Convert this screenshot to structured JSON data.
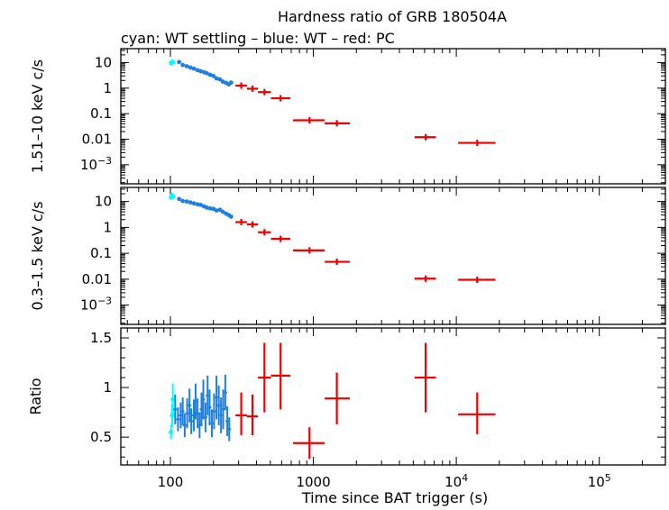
{
  "chart_data": {
    "type": "scatter",
    "title": "Hardness ratio of GRB 180504A",
    "subtitle": "cyan: WT settling – blue: WT – red: PC",
    "xlabel": "Time since BAT trigger (s)",
    "xscale": "log",
    "xlim": [
      45,
      290000.0
    ],
    "xticks": [
      {
        "value": 100,
        "base": "100",
        "exp": ""
      },
      {
        "value": 1000,
        "base": "1000",
        "exp": ""
      },
      {
        "value": 10000,
        "base": "10",
        "exp": "4"
      },
      {
        "value": 100000,
        "base": "10",
        "exp": "5"
      }
    ],
    "colors": {
      "settling": "#00ffff",
      "wt": "#1e7fe0",
      "pc": "#ee0000"
    },
    "panels": [
      {
        "id": "hard",
        "ylabel": "1.51–10 keV c/s",
        "yscale": "log",
        "ylim": [
          0.00018,
          35
        ],
        "yticks": [
          {
            "value": 10,
            "base": "10",
            "exp": ""
          },
          {
            "value": 1,
            "base": "1",
            "exp": ""
          },
          {
            "value": 0.1,
            "base": "0.1",
            "exp": ""
          },
          {
            "value": 0.01,
            "base": "0.01",
            "exp": ""
          },
          {
            "value": 0.001,
            "base": "10",
            "exp": "−3"
          }
        ],
        "settling": [
          [
            101,
            9.6
          ],
          [
            103,
            10.8
          ],
          [
            104,
            10.2
          ]
        ],
        "wt": [
          [
            115,
            10.5
          ],
          [
            122,
            8.0
          ],
          [
            130,
            7.2
          ],
          [
            138,
            6.4
          ],
          [
            146,
            5.8
          ],
          [
            155,
            5.0
          ],
          [
            163,
            4.6
          ],
          [
            172,
            4.2
          ],
          [
            180,
            3.8
          ],
          [
            190,
            3.3
          ],
          [
            200,
            3.0
          ],
          [
            210,
            2.4
          ],
          [
            222,
            2.2
          ],
          [
            233,
            1.8
          ],
          [
            245,
            1.6
          ],
          [
            256,
            1.4
          ],
          [
            266,
            1.65
          ]
        ],
        "pc": [
          {
            "x": 313,
            "xlo": 285,
            "xhi": 343,
            "y": 1.25
          },
          {
            "x": 375,
            "xlo": 343,
            "xhi": 410,
            "y": 0.95
          },
          {
            "x": 455,
            "xlo": 410,
            "xhi": 505,
            "y": 0.7
          },
          {
            "x": 590,
            "xlo": 505,
            "xhi": 690,
            "y": 0.4
          },
          {
            "x": 940,
            "xlo": 720,
            "xhi": 1200,
            "y": 0.055
          },
          {
            "x": 1460,
            "xlo": 1200,
            "xhi": 1800,
            "y": 0.042
          },
          {
            "x": 6100,
            "xlo": 5100,
            "xhi": 7200,
            "y": 0.012
          },
          {
            "x": 14000,
            "xlo": 10300,
            "xhi": 18800,
            "y": 0.0072
          }
        ]
      },
      {
        "id": "soft",
        "ylabel": "0.3–1.5 keV c/s",
        "yscale": "log",
        "ylim": [
          0.00018,
          35
        ],
        "yticks": [
          {
            "value": 10,
            "base": "10",
            "exp": ""
          },
          {
            "value": 1,
            "base": "1",
            "exp": ""
          },
          {
            "value": 0.1,
            "base": "0.1",
            "exp": ""
          },
          {
            "value": 0.01,
            "base": "0.01",
            "exp": ""
          },
          {
            "value": 0.001,
            "base": "10",
            "exp": "−3"
          }
        ],
        "settling": [
          [
            101,
            14.5
          ],
          [
            103,
            17.5
          ],
          [
            104,
            15.5
          ]
        ],
        "wt": [
          [
            115,
            12.5
          ],
          [
            122,
            10.5
          ],
          [
            130,
            10.0
          ],
          [
            138,
            9.2
          ],
          [
            146,
            8.5
          ],
          [
            155,
            7.8
          ],
          [
            163,
            7.4
          ],
          [
            172,
            6.5
          ],
          [
            180,
            5.8
          ],
          [
            190,
            5.4
          ],
          [
            200,
            5.2
          ],
          [
            210,
            4.5
          ],
          [
            222,
            4.8
          ],
          [
            233,
            4.0
          ],
          [
            245,
            3.4
          ],
          [
            256,
            3.0
          ],
          [
            266,
            2.6
          ]
        ],
        "pc": [
          {
            "x": 313,
            "xlo": 285,
            "xhi": 343,
            "y": 1.6
          },
          {
            "x": 375,
            "xlo": 343,
            "xhi": 410,
            "y": 1.3
          },
          {
            "x": 455,
            "xlo": 410,
            "xhi": 505,
            "y": 0.65
          },
          {
            "x": 590,
            "xlo": 505,
            "xhi": 690,
            "y": 0.36
          },
          {
            "x": 940,
            "xlo": 720,
            "xhi": 1200,
            "y": 0.13
          },
          {
            "x": 1460,
            "xlo": 1200,
            "xhi": 1800,
            "y": 0.047
          },
          {
            "x": 6100,
            "xlo": 5100,
            "xhi": 7200,
            "y": 0.0105
          },
          {
            "x": 14000,
            "xlo": 10300,
            "xhi": 18800,
            "y": 0.0095
          }
        ]
      },
      {
        "id": "ratio",
        "ylabel": "Ratio",
        "yscale": "linear",
        "ylim": [
          0.22,
          1.6
        ],
        "yticks": [
          {
            "value": 1.5,
            "base": "1.5",
            "exp": ""
          },
          {
            "value": 1,
            "base": "1",
            "exp": ""
          },
          {
            "value": 0.5,
            "base": "0.5",
            "exp": ""
          }
        ],
        "settling": [
          [
            101,
            0.55,
            0.07
          ],
          [
            103,
            0.72,
            0.12
          ],
          [
            104,
            0.88,
            0.16
          ]
        ],
        "wt": [
          [
            108,
            0.78,
            0.15
          ],
          [
            113,
            0.68,
            0.12
          ],
          [
            118,
            0.72,
            0.13
          ],
          [
            122,
            0.76,
            0.14
          ],
          [
            126,
            0.62,
            0.12
          ],
          [
            131,
            0.74,
            0.15
          ],
          [
            136,
            0.82,
            0.17
          ],
          [
            140,
            0.66,
            0.13
          ],
          [
            146,
            0.72,
            0.16
          ],
          [
            150,
            0.86,
            0.18
          ],
          [
            155,
            0.74,
            0.15
          ],
          [
            160,
            0.62,
            0.13
          ],
          [
            165,
            0.78,
            0.17
          ],
          [
            170,
            0.88,
            0.2
          ],
          [
            176,
            0.7,
            0.15
          ],
          [
            182,
            0.92,
            0.2
          ],
          [
            188,
            0.8,
            0.18
          ],
          [
            195,
            0.64,
            0.14
          ],
          [
            202,
            0.76,
            0.18
          ],
          [
            210,
            0.9,
            0.22
          ],
          [
            218,
            0.82,
            0.2
          ],
          [
            226,
            0.72,
            0.18
          ],
          [
            234,
            0.78,
            0.2
          ],
          [
            242,
            0.95,
            0.18
          ],
          [
            250,
            0.66,
            0.15
          ],
          [
            258,
            0.58,
            0.12
          ]
        ],
        "pc": [
          {
            "x": 313,
            "xlo": 285,
            "xhi": 343,
            "y": 0.72,
            "ylo": 0.52,
            "yhi": 0.95
          },
          {
            "x": 375,
            "xlo": 343,
            "xhi": 410,
            "y": 0.71,
            "ylo": 0.52,
            "yhi": 0.93
          },
          {
            "x": 455,
            "xlo": 410,
            "xhi": 505,
            "y": 1.1,
            "ylo": 0.75,
            "yhi": 1.45
          },
          {
            "x": 590,
            "xlo": 505,
            "xhi": 690,
            "y": 1.12,
            "ylo": 0.78,
            "yhi": 1.45
          },
          {
            "x": 940,
            "xlo": 720,
            "xhi": 1200,
            "y": 0.44,
            "ylo": 0.28,
            "yhi": 0.6
          },
          {
            "x": 1460,
            "xlo": 1200,
            "xhi": 1800,
            "y": 0.89,
            "ylo": 0.63,
            "yhi": 1.15
          },
          {
            "x": 6100,
            "xlo": 5100,
            "xhi": 7200,
            "y": 1.1,
            "ylo": 0.75,
            "yhi": 1.45
          },
          {
            "x": 14000,
            "xlo": 10300,
            "xhi": 18800,
            "y": 0.73,
            "ylo": 0.53,
            "yhi": 0.95
          }
        ]
      }
    ]
  }
}
